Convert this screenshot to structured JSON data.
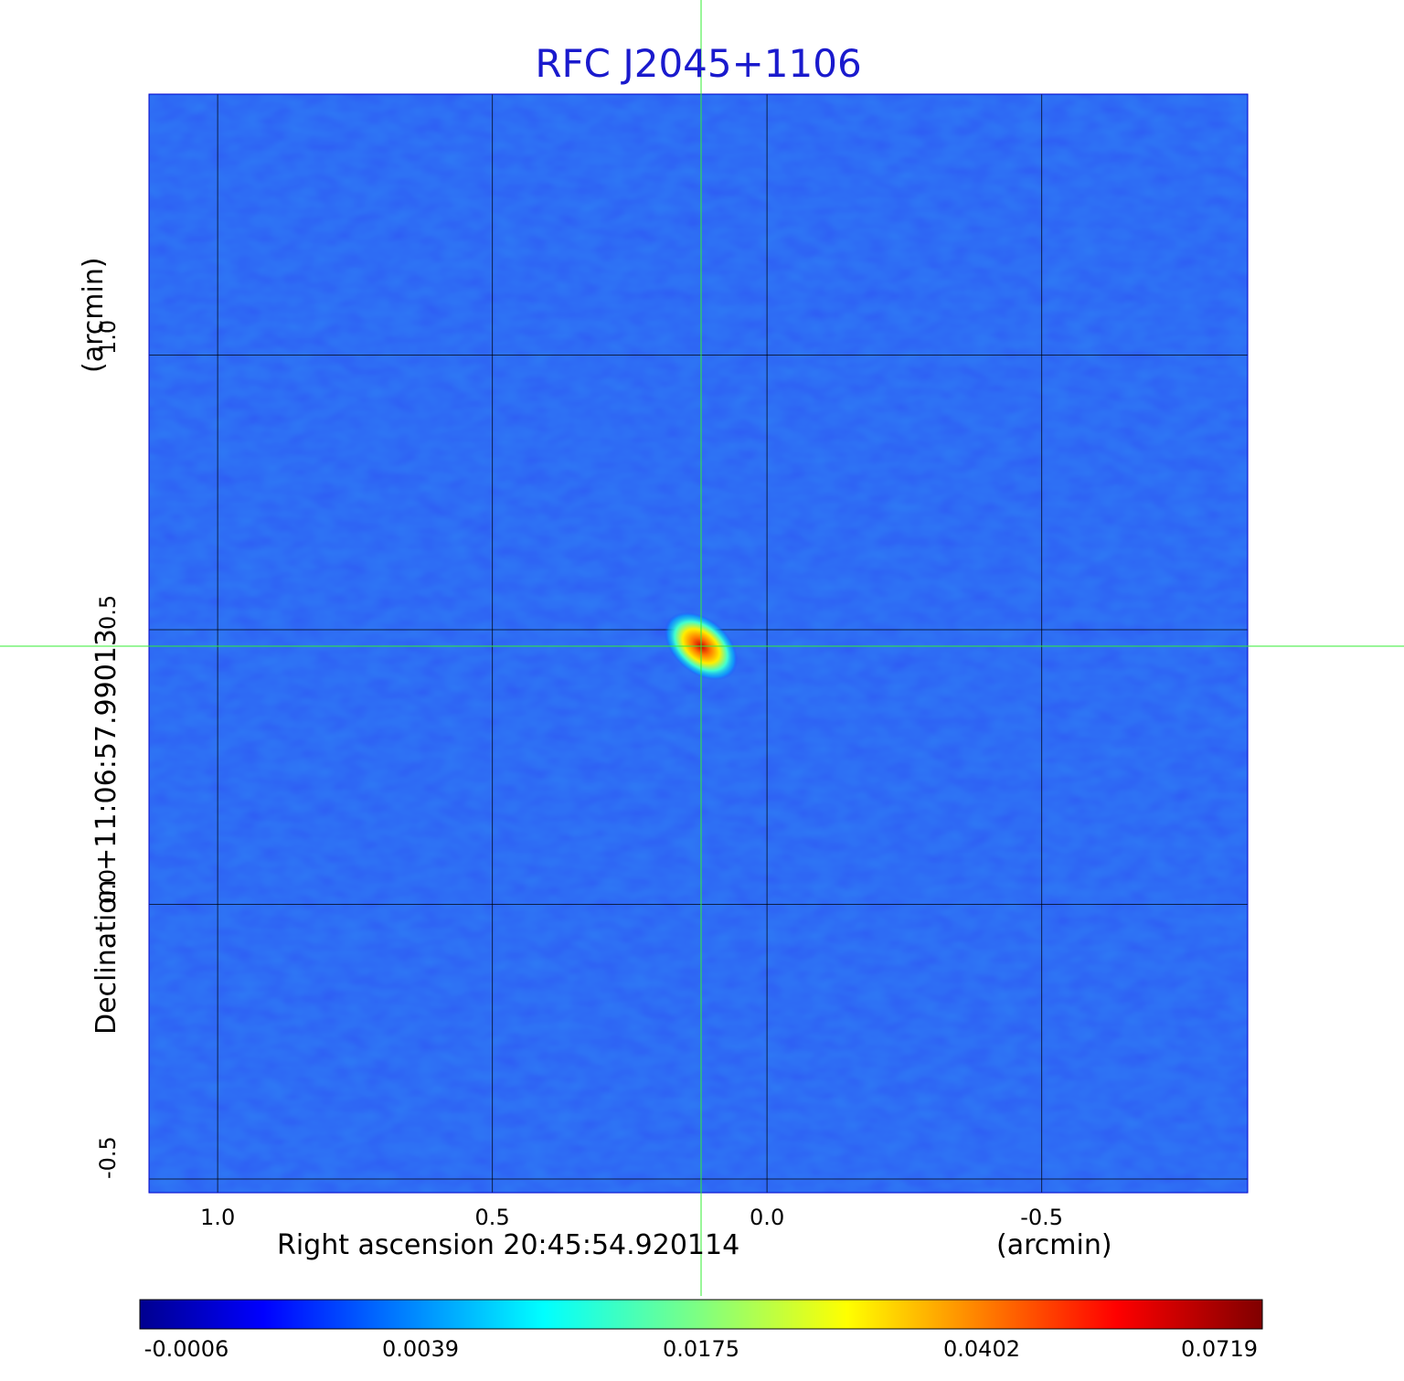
{
  "chart_data": {
    "type": "heatmap",
    "title": "RFC J2045+1106",
    "xlabel": "Right ascension  20:45:54.920114",
    "x_unit": "(arcmin)",
    "ylabel": "Declination  +11:06:57.99013",
    "y_unit": "(arcmin)",
    "xlim": [
      1.125,
      -0.875
    ],
    "ylim": [
      -0.525,
      1.475
    ],
    "x_ticks": [
      1.0,
      0.5,
      0.0,
      -0.5
    ],
    "x_tick_labels": [
      "1.0",
      "0.5",
      "0.0",
      "-0.5"
    ],
    "y_ticks": [
      -0.5,
      0.0,
      0.5,
      1.0
    ],
    "y_tick_labels": [
      "-0.5",
      "0.0",
      "0.5",
      "1.0"
    ],
    "grid": true,
    "grid_color": "#000000",
    "crosshair_color": "#33ee33",
    "crosshair": {
      "x": 0.12,
      "y": 0.47
    },
    "peak": {
      "x": 0.12,
      "y": 0.47,
      "value": 0.0719
    },
    "background_level": 0.0,
    "colormap": "jet",
    "colorbar": {
      "position": "bottom",
      "tick_labels": [
        "-0.0006",
        "0.0039",
        "0.0175",
        "0.0402",
        "0.0719"
      ],
      "range": [
        -0.0006,
        0.0719
      ]
    }
  }
}
